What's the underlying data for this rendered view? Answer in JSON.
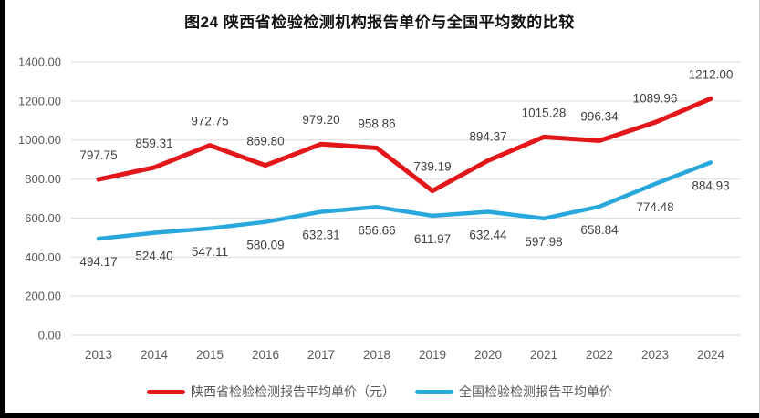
{
  "page": {
    "title": "图24 陕西省检验检测机构报告单价与全国平均数的比较"
  },
  "chart_data": {
    "type": "line",
    "title": "图24 陕西省检验检测机构报告单价与全国平均数的比较",
    "categories": [
      "2013",
      "2014",
      "2015",
      "2016",
      "2017",
      "2018",
      "2019",
      "2020",
      "2021",
      "2022",
      "2023",
      "2024"
    ],
    "series": [
      {
        "name": "陕西省检验检测报告平均单价（元）",
        "color": "#e3161a",
        "stroke_width": 5,
        "label_position": "above",
        "values": [
          797.75,
          859.31,
          972.75,
          869.8,
          979.2,
          958.86,
          739.19,
          894.37,
          1015.28,
          996.34,
          1089.96,
          1212.0
        ]
      },
      {
        "name": "全国检验检测报告平均单价",
        "color": "#29a8dc",
        "stroke_width": 4.5,
        "label_position": "below",
        "values": [
          494.17,
          524.4,
          547.11,
          580.09,
          632.31,
          656.66,
          611.97,
          632.44,
          597.98,
          658.84,
          774.48,
          884.93
        ]
      }
    ],
    "y_axis": {
      "min": 0,
      "max": 1400,
      "step": 200,
      "decimals": 2
    },
    "grid": true,
    "legend_position": "bottom",
    "data_labels": true
  },
  "colors": {
    "gridline": "#d9d9d9",
    "axis_text": "#595959",
    "data_label_text": "#404040",
    "series_red": "#e3161a",
    "series_blue": "#29a8dc",
    "scan_border": "#000000"
  }
}
